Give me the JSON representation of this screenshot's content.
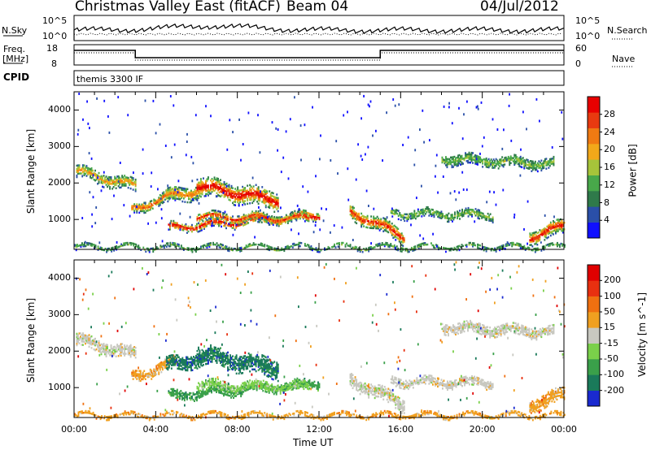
{
  "header": {
    "station": "Christmas Valley East (fitACF)",
    "beam": "Beam 04",
    "date": "04/Jul/2012"
  },
  "strips": {
    "nsky_label": "N.Sky",
    "nsky_ticks": [
      "10^5",
      "10^0"
    ],
    "nsearch_label": "N.Search",
    "nsearch_ticks": [
      "10^5",
      "10^0"
    ],
    "freq_label": "Freq.",
    "freq_unit": "[MHz]",
    "freq_ticks": [
      "18",
      "8"
    ],
    "nave_label": "Nave",
    "nave_ticks": [
      "60",
      "0"
    ],
    "cpid_label": "CPID",
    "cpid_value": "themis 3300 IF"
  },
  "chart_data": [
    {
      "type": "heatmap",
      "name": "power",
      "ylabel": "Slant Range [km]",
      "xlabel": "",
      "ylim": [
        180,
        4500
      ],
      "yticks": [
        1000,
        2000,
        3000,
        4000
      ],
      "colorbar": {
        "label": "Power [dB]",
        "ticks": [
          "28",
          "24",
          "20",
          "16",
          "12",
          "8",
          "4"
        ],
        "colors": [
          "#1010ff",
          "#2a4fa8",
          "#2f7a4a",
          "#48a84a",
          "#a6c43a",
          "#f2a81a",
          "#f07a12",
          "#e83a10",
          "#e80000"
        ]
      }
    },
    {
      "type": "heatmap",
      "name": "velocity",
      "ylabel": "Slant Range [km]",
      "xlabel": "Time UT",
      "xticks": [
        "00:00",
        "04:00",
        "08:00",
        "12:00",
        "16:00",
        "20:00",
        "00:00"
      ],
      "ylim": [
        180,
        4500
      ],
      "yticks": [
        1000,
        2000,
        3000,
        4000
      ],
      "colorbar": {
        "label": "Velocity [m s^-1]",
        "ticks": [
          "200",
          "100",
          "50",
          "15",
          "-15",
          "-50",
          "-100",
          "-200"
        ],
        "colors": [
          "#1a2ad0",
          "#1a7a5a",
          "#3aa04a",
          "#7ad04a",
          "#c8c8c0",
          "#f0a020",
          "#f07010",
          "#e83010",
          "#e00000"
        ]
      }
    }
  ]
}
